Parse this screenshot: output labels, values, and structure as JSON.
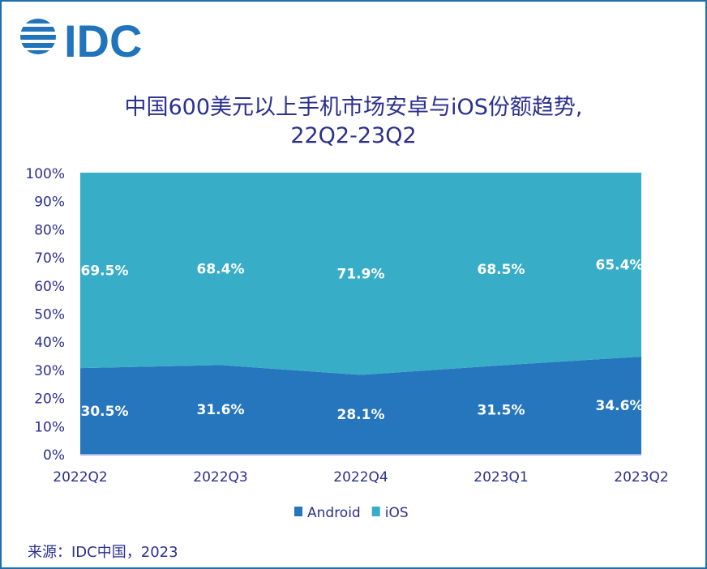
{
  "logo_text": "IDC",
  "chart_data": {
    "type": "area",
    "stacked": true,
    "title": "中国600美元以上手机市场安卓与iOS份额趋势,",
    "subtitle": "22Q2-23Q2",
    "categories": [
      "2022Q2",
      "2022Q3",
      "2022Q4",
      "2023Q1",
      "2023Q2"
    ],
    "series": [
      {
        "name": "Android",
        "values": [
          30.5,
          31.6,
          28.1,
          31.5,
          34.6
        ],
        "labels": [
          "30.5%",
          "31.6%",
          "28.1%",
          "31.5%",
          "34.6%"
        ],
        "color": "#2676bd"
      },
      {
        "name": "iOS",
        "values": [
          69.5,
          68.4,
          71.9,
          68.5,
          65.4
        ],
        "labels": [
          "69.5%",
          "68.4%",
          "71.9%",
          "68.5%",
          "65.4%"
        ],
        "color": "#37adc8"
      }
    ],
    "ylim": [
      0,
      100
    ],
    "yticks": [
      "0%",
      "10%",
      "20%",
      "30%",
      "40%",
      "50%",
      "60%",
      "70%",
      "80%",
      "90%",
      "100%"
    ],
    "grid": false,
    "legend_position": "bottom"
  },
  "source": "来源：IDC中国，2023"
}
